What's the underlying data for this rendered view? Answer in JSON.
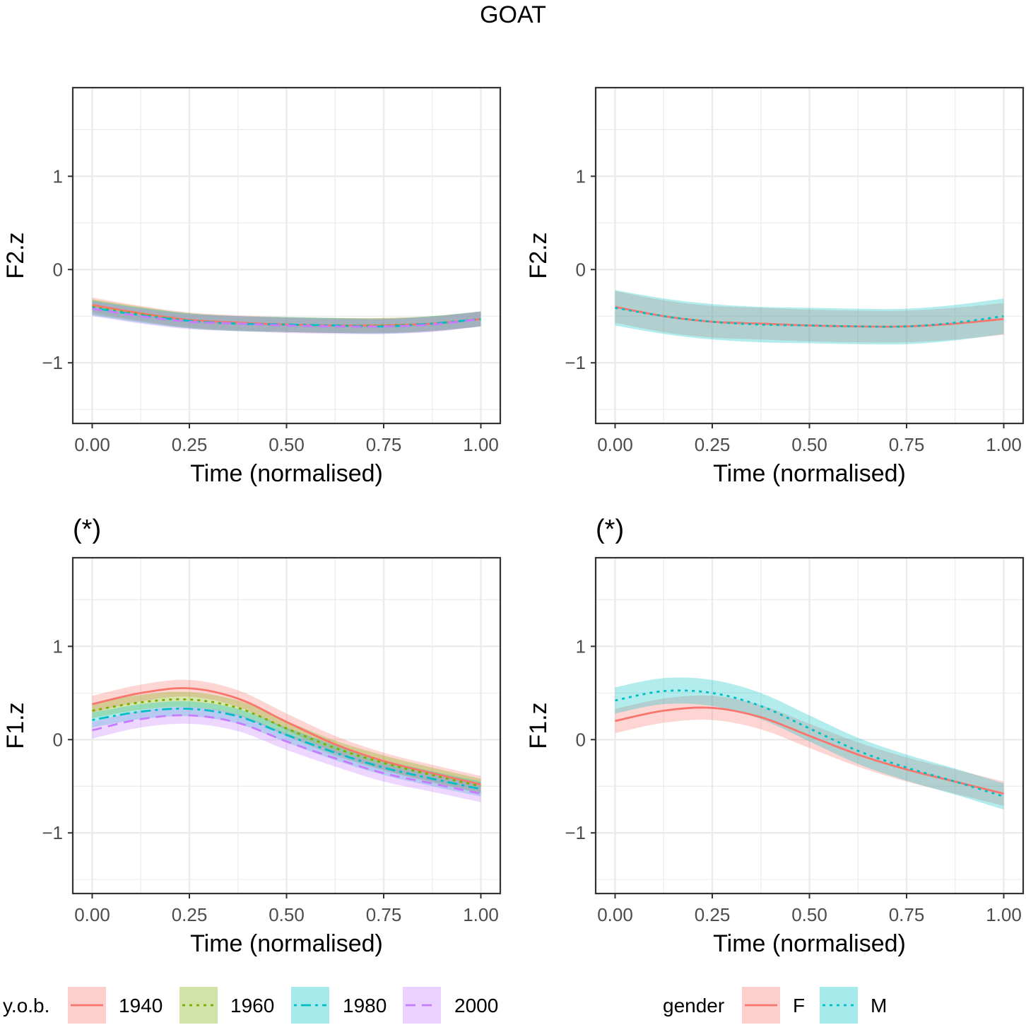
{
  "title": "GOAT",
  "colors": {
    "1940": "#f8766d",
    "1960": "#7cae00",
    "1980": "#00bfc4",
    "2000": "#c77cff",
    "F": "#f8766d",
    "M": "#00bfc4",
    "grid": "#ebebeb",
    "axis": "#333333",
    "tick_text": "#4d4d4d"
  },
  "legends": {
    "yob": {
      "title": "y.o.b.",
      "items": [
        "1940",
        "1960",
        "1980",
        "2000"
      ]
    },
    "gender": {
      "title": "gender",
      "items": [
        "F",
        "M"
      ]
    }
  },
  "chart_data": [
    {
      "id": "f2-yob",
      "type": "line",
      "significance": "",
      "ylabel": "F2.z",
      "xlabel": "Time (normalised)",
      "xlim": [
        0,
        1
      ],
      "ylim": [
        -1.65,
        1.95
      ],
      "x_ticks": [
        "0.00",
        "0.25",
        "0.50",
        "0.75",
        "1.00"
      ],
      "y_ticks": [
        "−1",
        "0",
        "1"
      ],
      "x": [
        0,
        0.125,
        0.25,
        0.375,
        0.5,
        0.625,
        0.75,
        0.875,
        1
      ],
      "series": [
        {
          "name": "1940",
          "dash": "solid",
          "values": [
            -0.38,
            -0.47,
            -0.54,
            -0.57,
            -0.59,
            -0.6,
            -0.6,
            -0.58,
            -0.53
          ],
          "ribbon": 0.08
        },
        {
          "name": "1960",
          "dash": "dotted",
          "values": [
            -0.4,
            -0.48,
            -0.55,
            -0.58,
            -0.59,
            -0.6,
            -0.6,
            -0.58,
            -0.53
          ],
          "ribbon": 0.08
        },
        {
          "name": "1980",
          "dash": "dotdash",
          "values": [
            -0.41,
            -0.49,
            -0.55,
            -0.58,
            -0.59,
            -0.6,
            -0.61,
            -0.58,
            -0.53
          ],
          "ribbon": 0.08
        },
        {
          "name": "2000",
          "dash": "dashed",
          "values": [
            -0.42,
            -0.5,
            -0.56,
            -0.58,
            -0.6,
            -0.61,
            -0.61,
            -0.59,
            -0.53
          ],
          "ribbon": 0.08
        }
      ]
    },
    {
      "id": "f2-gender",
      "type": "line",
      "significance": "",
      "ylabel": "F2.z",
      "xlabel": "Time (normalised)",
      "xlim": [
        0,
        1
      ],
      "ylim": [
        -1.65,
        1.95
      ],
      "x_ticks": [
        "0.00",
        "0.25",
        "0.50",
        "0.75",
        "1.00"
      ],
      "y_ticks": [
        "−1",
        "0",
        "1"
      ],
      "x": [
        0,
        0.125,
        0.25,
        0.375,
        0.5,
        0.625,
        0.75,
        0.875,
        1
      ],
      "series": [
        {
          "name": "F",
          "dash": "solid",
          "values": [
            -0.4,
            -0.5,
            -0.56,
            -0.58,
            -0.6,
            -0.61,
            -0.61,
            -0.58,
            -0.53
          ],
          "ribbon": 0.17
        },
        {
          "name": "M",
          "dash": "dotted",
          "values": [
            -0.41,
            -0.5,
            -0.56,
            -0.59,
            -0.6,
            -0.61,
            -0.61,
            -0.57,
            -0.5
          ],
          "ribbon": 0.19
        }
      ]
    },
    {
      "id": "f1-yob",
      "type": "line",
      "significance": "(*)",
      "ylabel": "F1.z",
      "xlabel": "Time (normalised)",
      "xlim": [
        0,
        1
      ],
      "ylim": [
        -1.65,
        1.95
      ],
      "x_ticks": [
        "0.00",
        "0.25",
        "0.50",
        "0.75",
        "1.00"
      ],
      "y_ticks": [
        "−1",
        "0",
        "1"
      ],
      "x": [
        0,
        0.125,
        0.25,
        0.375,
        0.5,
        0.625,
        0.75,
        0.875,
        1
      ],
      "series": [
        {
          "name": "1940",
          "dash": "solid",
          "values": [
            0.38,
            0.5,
            0.55,
            0.44,
            0.19,
            -0.05,
            -0.23,
            -0.36,
            -0.48
          ],
          "ribbon": 0.09
        },
        {
          "name": "1960",
          "dash": "dotted",
          "values": [
            0.31,
            0.4,
            0.43,
            0.34,
            0.12,
            -0.09,
            -0.25,
            -0.38,
            -0.5
          ],
          "ribbon": 0.08
        },
        {
          "name": "1980",
          "dash": "dotdash",
          "values": [
            0.21,
            0.3,
            0.33,
            0.25,
            0.05,
            -0.14,
            -0.3,
            -0.42,
            -0.53
          ],
          "ribbon": 0.08
        },
        {
          "name": "2000",
          "dash": "dashed",
          "values": [
            0.1,
            0.22,
            0.26,
            0.18,
            -0.02,
            -0.2,
            -0.36,
            -0.47,
            -0.58
          ],
          "ribbon": 0.09
        }
      ]
    },
    {
      "id": "f1-gender",
      "type": "line",
      "significance": "(*)",
      "ylabel": "F1.z",
      "xlabel": "Time (normalised)",
      "xlim": [
        0,
        1
      ],
      "ylim": [
        -1.65,
        1.95
      ],
      "x_ticks": [
        "0.00",
        "0.25",
        "0.50",
        "0.75",
        "1.00"
      ],
      "y_ticks": [
        "−1",
        "0",
        "1"
      ],
      "x": [
        0,
        0.125,
        0.25,
        0.375,
        0.5,
        0.625,
        0.75,
        0.875,
        1
      ],
      "series": [
        {
          "name": "F",
          "dash": "solid",
          "values": [
            0.2,
            0.31,
            0.34,
            0.24,
            0.04,
            -0.16,
            -0.32,
            -0.45,
            -0.58
          ],
          "ribbon": 0.13
        },
        {
          "name": "M",
          "dash": "dotted",
          "values": [
            0.42,
            0.52,
            0.5,
            0.36,
            0.12,
            -0.12,
            -0.3,
            -0.45,
            -0.61
          ],
          "ribbon": 0.14
        }
      ]
    }
  ]
}
